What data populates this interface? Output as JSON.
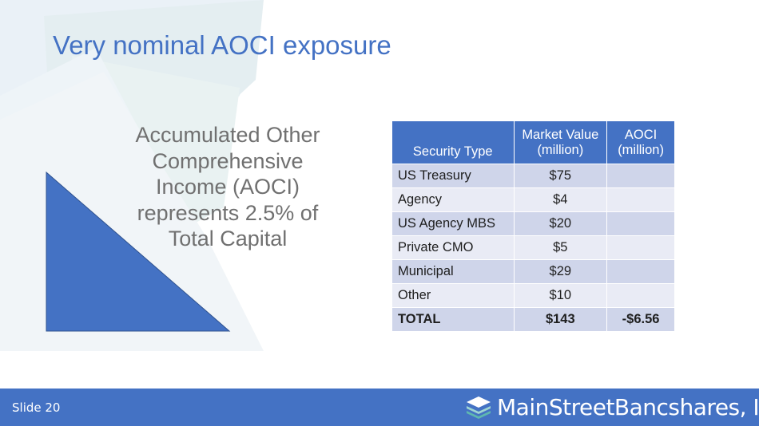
{
  "slide": {
    "title": "Very nominal AOCI exposure",
    "callout_lines": [
      "Accumulated Other",
      "Comprehensive",
      "Income (AOCI)",
      "represents 2.5% of",
      "Total Capital"
    ]
  },
  "table": {
    "headers": {
      "type": "Security Type",
      "market_value": [
        "Market Value",
        "(million)"
      ],
      "aoci": [
        "AOCI",
        "(million)"
      ]
    },
    "rows": [
      {
        "type": "US Treasury",
        "market_value": "$75",
        "aoci": ""
      },
      {
        "type": "Agency",
        "market_value": "$4",
        "aoci": ""
      },
      {
        "type": "US Agency MBS",
        "market_value": "$20",
        "aoci": ""
      },
      {
        "type": "Private CMO",
        "market_value": "$5",
        "aoci": ""
      },
      {
        "type": "Municipal",
        "market_value": "$29",
        "aoci": ""
      },
      {
        "type": "Other",
        "market_value": "$10",
        "aoci": ""
      },
      {
        "type": "TOTAL",
        "market_value": "$143",
        "aoci": "-$6.56"
      }
    ]
  },
  "footer": {
    "slide_number": "Slide 20",
    "logo_text": "MainStreetBancshares, Inc."
  },
  "colors": {
    "accent": "#4472c4",
    "row_dark": "#cfd5ea",
    "row_light": "#e9ebf5",
    "callout_text": "#707070"
  },
  "icons": {
    "logo": "stacked-layers-icon",
    "callout_shape": "right-triangle-shape"
  }
}
